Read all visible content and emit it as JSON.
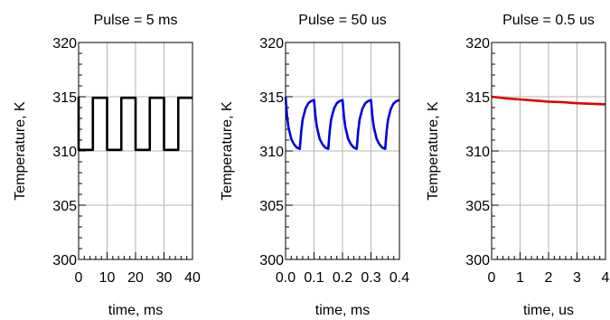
{
  "chart_data": [
    {
      "type": "line",
      "title": "Pulse = 5 ms",
      "xlabel": "time, ms",
      "ylabel": "Temperature, K",
      "xlim": [
        0,
        40
      ],
      "ylim": [
        300,
        320
      ],
      "xticks": [
        0,
        10,
        20,
        30,
        40
      ],
      "xtick_labels": [
        "0",
        "10",
        "20",
        "30",
        "40"
      ],
      "yticks": [
        300,
        305,
        310,
        315,
        320
      ],
      "ytick_labels": [
        "300",
        "305",
        "310",
        "315",
        "320"
      ],
      "grid": true,
      "series": [
        {
          "color": "#000000",
          "x": [
            0,
            0,
            5,
            5,
            10,
            10,
            15,
            15,
            20,
            20,
            25,
            25,
            30,
            30,
            35,
            35,
            40
          ],
          "y": [
            315,
            310.1,
            310.1,
            314.9,
            314.9,
            310.1,
            310.1,
            314.9,
            314.9,
            310.1,
            310.1,
            314.9,
            314.9,
            310.1,
            310.1,
            314.9,
            314.9
          ]
        }
      ]
    },
    {
      "type": "line",
      "title": "Pulse = 50 us",
      "xlabel": "time, ms",
      "ylabel": "Temperature, K",
      "xlim": [
        0,
        0.4
      ],
      "ylim": [
        300,
        320
      ],
      "xticks": [
        0,
        0.1,
        0.2,
        0.3,
        0.4
      ],
      "xtick_labels": [
        "0.0",
        "0.1",
        "0.2",
        "0.3",
        "0.4"
      ],
      "yticks": [
        300,
        305,
        310,
        315,
        320
      ],
      "ytick_labels": [
        "300",
        "305",
        "310",
        "315",
        "320"
      ],
      "grid": true,
      "series": [
        {
          "color": "#0000e0",
          "x": [
            0,
            0.005,
            0.01,
            0.02,
            0.03,
            0.04,
            0.05,
            0.055,
            0.06,
            0.07,
            0.08,
            0.09,
            0.1,
            0.105,
            0.11,
            0.12,
            0.13,
            0.14,
            0.15,
            0.155,
            0.16,
            0.17,
            0.18,
            0.19,
            0.2,
            0.205,
            0.21,
            0.22,
            0.23,
            0.24,
            0.25,
            0.255,
            0.26,
            0.27,
            0.28,
            0.29,
            0.3,
            0.305,
            0.31,
            0.32,
            0.33,
            0.34,
            0.35,
            0.355,
            0.36,
            0.37,
            0.38,
            0.39,
            0.4
          ],
          "y": [
            315,
            313.3,
            312.2,
            311.1,
            310.6,
            310.3,
            310.2,
            311.8,
            312.9,
            313.9,
            314.4,
            314.6,
            314.7,
            313.2,
            312.2,
            311.1,
            310.6,
            310.3,
            310.2,
            311.8,
            312.9,
            313.9,
            314.4,
            314.6,
            314.7,
            313.2,
            312.2,
            311.1,
            310.6,
            310.3,
            310.2,
            311.8,
            312.9,
            313.9,
            314.4,
            314.6,
            314.7,
            313.2,
            312.2,
            311.1,
            310.6,
            310.3,
            310.2,
            311.8,
            312.9,
            313.9,
            314.4,
            314.6,
            314.7
          ]
        }
      ]
    },
    {
      "type": "line",
      "title": "Pulse = 0.5 us",
      "xlabel": "time, us",
      "ylabel": "Temperature, K",
      "xlim": [
        0,
        4
      ],
      "ylim": [
        300,
        320
      ],
      "xticks": [
        0,
        1,
        2,
        3,
        4
      ],
      "xtick_labels": [
        "0",
        "1",
        "2",
        "3",
        "4"
      ],
      "yticks": [
        300,
        305,
        310,
        315,
        320
      ],
      "ytick_labels": [
        "300",
        "305",
        "310",
        "315",
        "320"
      ],
      "grid": true,
      "series": [
        {
          "color": "#e00000",
          "x": [
            0,
            0.5,
            1,
            1.5,
            2,
            2.5,
            3,
            3.5,
            4
          ],
          "y": [
            315,
            314.85,
            314.75,
            314.65,
            314.55,
            314.5,
            314.4,
            314.35,
            314.3
          ]
        }
      ]
    }
  ]
}
